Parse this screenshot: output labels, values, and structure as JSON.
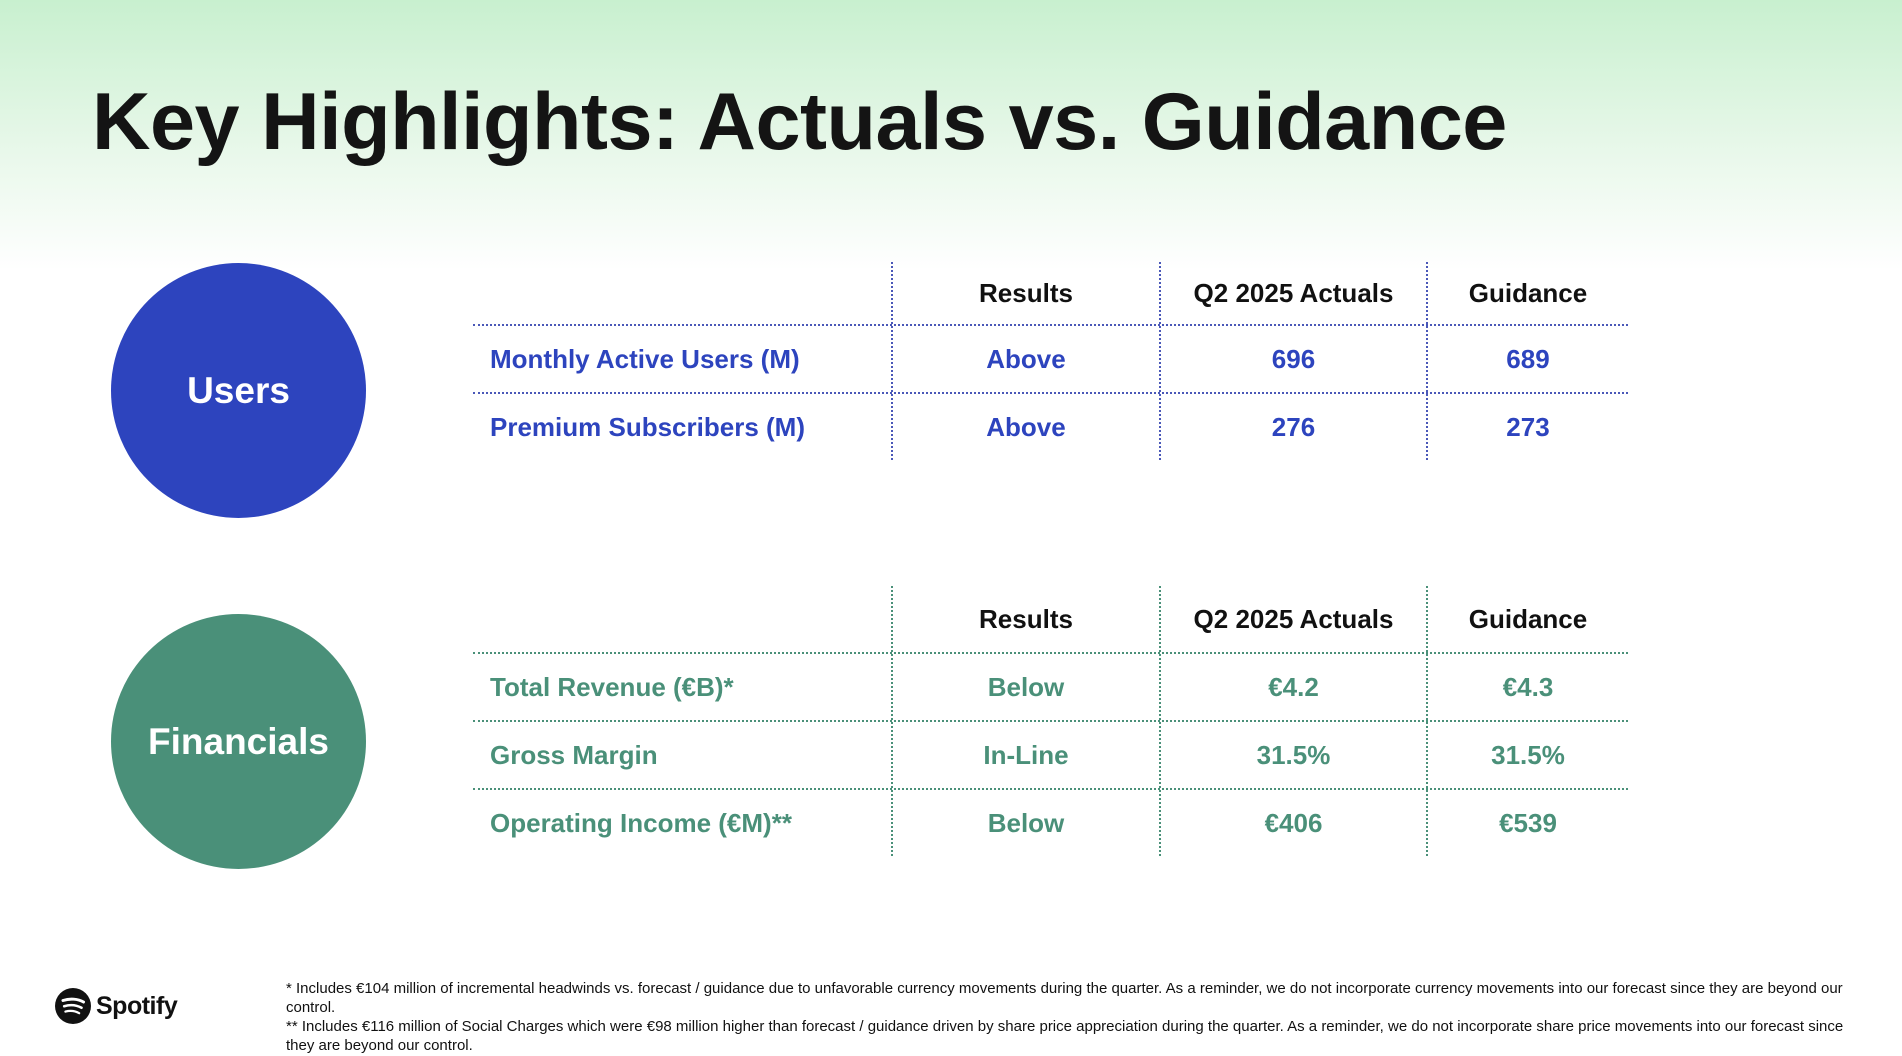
{
  "title": "Key Highlights: Actuals vs. Guidance",
  "users": {
    "circle_label": "Users",
    "headers": [
      "",
      "Results",
      "Q2 2025 Actuals",
      "Guidance"
    ],
    "rows": [
      {
        "metric": "Monthly Active Users (M)",
        "result": "Above",
        "actual": "696",
        "guidance": "689"
      },
      {
        "metric": "Premium Subscribers (M)",
        "result": "Above",
        "actual": "276",
        "guidance": "273"
      }
    ]
  },
  "financials": {
    "circle_label": "Financials",
    "headers": [
      "",
      "Results",
      "Q2 2025 Actuals",
      "Guidance"
    ],
    "rows": [
      {
        "metric": "Total Revenue (€B)*",
        "result": "Below",
        "actual": "€4.2",
        "guidance": "€4.3"
      },
      {
        "metric": "Gross Margin",
        "result": "In-Line",
        "actual": "31.5%",
        "guidance": "31.5%"
      },
      {
        "metric": "Operating Income (€M)**",
        "result": "Below",
        "actual": "€406",
        "guidance": "€539"
      }
    ]
  },
  "footer": {
    "brand": "Spotify",
    "brand_icon": "spotify-icon",
    "footnote1": "*  Includes €104 million of incremental headwinds vs. forecast / guidance due to unfavorable currency movements during the quarter. As a reminder, we do not incorporate currency movements into our forecast since they are beyond our control.",
    "footnote2": "** Includes €116 million of Social Charges which were €98 million higher than forecast / guidance driven by share price appreciation during the quarter. As a reminder, we do not incorporate share price movements into our forecast since they are beyond our control."
  },
  "colors": {
    "users": "#2d44be",
    "financials": "#4a9079"
  }
}
